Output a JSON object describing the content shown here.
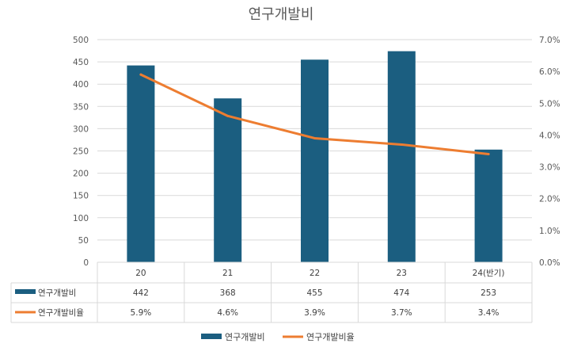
{
  "chart_data": {
    "type": "bar",
    "title": "연구개발비",
    "categories": [
      "20",
      "21",
      "22",
      "23",
      "24(반기)"
    ],
    "series": [
      {
        "name": "연구개발비",
        "type": "bar",
        "axis": "left",
        "color": "#1b5e80",
        "values": [
          442,
          368,
          455,
          474,
          253
        ],
        "labels": [
          "442",
          "368",
          "455",
          "474",
          "253"
        ]
      },
      {
        "name": "연구개발비율",
        "type": "line",
        "axis": "right",
        "color": "#ed7d31",
        "values": [
          5.9,
          4.6,
          3.9,
          3.7,
          3.4
        ],
        "labels": [
          "5.9%",
          "4.6%",
          "3.9%",
          "3.7%",
          "3.4%"
        ]
      }
    ],
    "y_left": {
      "min": 0,
      "max": 500,
      "step": 50,
      "ticks": [
        "0",
        "50",
        "100",
        "150",
        "200",
        "250",
        "300",
        "350",
        "400",
        "450",
        "500"
      ]
    },
    "y_right": {
      "min": 0,
      "max": 7,
      "step": 1,
      "ticks": [
        "0.0%",
        "1.0%",
        "2.0%",
        "3.0%",
        "4.0%",
        "5.0%",
        "6.0%",
        "7.0%"
      ]
    },
    "grid": true,
    "legend_position": "bottom",
    "data_table": true
  }
}
